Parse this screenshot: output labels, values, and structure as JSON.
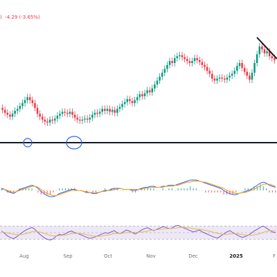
{
  "header": {
    "paren": ")",
    "change": "-4.29 (-3.65%)"
  },
  "colors": {
    "up": "#089981",
    "down": "#f23645",
    "support": "#131722",
    "circle": "#2962ff",
    "trendline": "#131722",
    "macd": "#2962ff",
    "signal": "#ff9800",
    "rsi": "#7e57c2",
    "rsi_ma": "#e8b84a",
    "rsi_band": "#ede7f6"
  },
  "chart_data": [
    {
      "type": "candlestick",
      "x_tick_labels": [
        "Aug",
        "Sep",
        "Oct",
        "Nov",
        "Dec",
        "2025",
        "F"
      ],
      "price_series": [
        0.42,
        0.4,
        0.37,
        0.35,
        0.33,
        0.36,
        0.39,
        0.41,
        0.44,
        0.47,
        0.5,
        0.53,
        0.5,
        0.47,
        0.42,
        0.36,
        0.33,
        0.3,
        0.28,
        0.27,
        0.3,
        0.29,
        0.31,
        0.34,
        0.36,
        0.38,
        0.37,
        0.36,
        0.38,
        0.35,
        0.32,
        0.3,
        0.29,
        0.3,
        0.31,
        0.3,
        0.32,
        0.35,
        0.37,
        0.36,
        0.38,
        0.41,
        0.39,
        0.41,
        0.38,
        0.4,
        0.37,
        0.41,
        0.43,
        0.46,
        0.48,
        0.51,
        0.49,
        0.47,
        0.5,
        0.53,
        0.56,
        0.54,
        0.57,
        0.6,
        0.58,
        0.62,
        0.66,
        0.7,
        0.74,
        0.78,
        0.82,
        0.86,
        0.9,
        0.88,
        0.93,
        0.95,
        0.96,
        0.94,
        0.92,
        0.9,
        0.88,
        0.9,
        0.93,
        0.91,
        0.89,
        0.86,
        0.84,
        0.8,
        0.77,
        0.72,
        0.7,
        0.72,
        0.73,
        0.72,
        0.71,
        0.73,
        0.75,
        0.77,
        0.8,
        0.85,
        0.88,
        0.83,
        0.79,
        0.75,
        0.71,
        0.78,
        0.88,
        0.97,
        1.05,
        1.02,
        0.98,
        1.0,
        0.95,
        0.93,
        0.91
      ],
      "annotations": [
        "support-line",
        "circle-aug",
        "circle-sep",
        "trendline"
      ]
    },
    {
      "type": "line",
      "series": [
        {
          "values": [
            0.02,
            0.01,
            -0.01,
            -0.02,
            -0.03,
            -0.01,
            0.01,
            0.02,
            0.03,
            0.04,
            0.05,
            0.04,
            0.02,
            -0.01,
            -0.03,
            -0.05,
            -0.06,
            -0.06,
            -0.05,
            -0.03,
            -0.02,
            -0.01,
            0.0,
            0.01,
            0.01,
            0.0,
            0.0,
            -0.01,
            -0.02,
            -0.02,
            -0.03,
            -0.03,
            -0.02,
            -0.01,
            0.0,
            0.0,
            0.01,
            0.02,
            0.02,
            0.02,
            0.01,
            0.01,
            0.01,
            0.0,
            0.0,
            0.01,
            0.02,
            0.03,
            0.03,
            0.04,
            0.04,
            0.03,
            0.03,
            0.04,
            0.04,
            0.05,
            0.05,
            0.05,
            0.06,
            0.07,
            0.08,
            0.09,
            0.1,
            0.1,
            0.1,
            0.09,
            0.08,
            0.07,
            0.06,
            0.05,
            0.04,
            0.03,
            0.02,
            0.0,
            -0.02,
            -0.03,
            -0.04,
            -0.04,
            -0.03,
            -0.02,
            -0.01,
            0.0,
            0.01,
            0.03,
            0.05,
            0.07,
            0.08,
            0.07,
            0.05,
            0.04,
            0.03
          ]
        },
        {
          "values": [
            0.01,
            0.01,
            0.0,
            -0.01,
            -0.02,
            -0.01,
            0.0,
            0.01,
            0.02,
            0.03,
            0.04,
            0.04,
            0.03,
            0.01,
            -0.01,
            -0.03,
            -0.04,
            -0.05,
            -0.05,
            -0.04,
            -0.03,
            -0.02,
            -0.01,
            0.0,
            0.0,
            0.0,
            0.0,
            -0.01,
            -0.01,
            -0.02,
            -0.02,
            -0.02,
            -0.02,
            -0.01,
            -0.01,
            0.0,
            0.0,
            0.01,
            0.01,
            0.02,
            0.01,
            0.01,
            0.01,
            0.01,
            0.01,
            0.01,
            0.01,
            0.02,
            0.02,
            0.03,
            0.03,
            0.03,
            0.03,
            0.03,
            0.04,
            0.04,
            0.04,
            0.05,
            0.05,
            0.06,
            0.07,
            0.08,
            0.08,
            0.09,
            0.09,
            0.09,
            0.08,
            0.08,
            0.07,
            0.06,
            0.05,
            0.04,
            0.03,
            0.02,
            0.0,
            -0.01,
            -0.02,
            -0.03,
            -0.03,
            -0.02,
            -0.02,
            -0.01,
            0.0,
            0.01,
            0.03,
            0.04,
            0.06,
            0.06,
            0.06,
            0.05,
            0.04
          ]
        }
      ]
    },
    {
      "type": "line",
      "ylim": [
        0,
        100
      ],
      "band": [
        30,
        70
      ],
      "series": [
        {
          "values": [
            55,
            48,
            40,
            35,
            32,
            38,
            45,
            52,
            58,
            62,
            66,
            60,
            50,
            42,
            35,
            30,
            28,
            31,
            40,
            45,
            43,
            47,
            52,
            55,
            50,
            48,
            44,
            40,
            36,
            33,
            35,
            38,
            42,
            46,
            50,
            48,
            52,
            56,
            50,
            47,
            52,
            58,
            55,
            50,
            46,
            52,
            58,
            62,
            65,
            60,
            56,
            60,
            64,
            68,
            66,
            62,
            64,
            70,
            72,
            68,
            64,
            60,
            56,
            52,
            55,
            58,
            52,
            48,
            44,
            40,
            36,
            34,
            40,
            46,
            52,
            56,
            50,
            45,
            40,
            36,
            38,
            42,
            48,
            55,
            60,
            66,
            70,
            64,
            58,
            52,
            50
          ]
        },
        {
          "values": [
            52,
            51,
            49,
            47,
            45,
            44,
            44,
            45,
            47,
            50,
            53,
            54,
            53,
            51,
            48,
            45,
            42,
            40,
            40,
            41,
            42,
            43,
            45,
            47,
            48,
            48,
            47,
            46,
            44,
            42,
            40,
            39,
            39,
            40,
            42,
            43,
            45,
            47,
            48,
            48,
            49,
            50,
            51,
            51,
            51,
            51,
            52,
            53,
            55,
            57,
            58,
            59,
            60,
            61,
            62,
            62,
            63,
            64,
            65,
            66,
            66,
            65,
            64,
            62,
            61,
            60,
            59,
            57,
            55,
            53,
            50,
            48,
            46,
            45,
            45,
            46,
            47,
            47,
            46,
            44,
            43,
            42,
            42,
            43,
            45,
            48,
            51,
            54,
            56,
            56,
            55
          ]
        }
      ]
    }
  ]
}
